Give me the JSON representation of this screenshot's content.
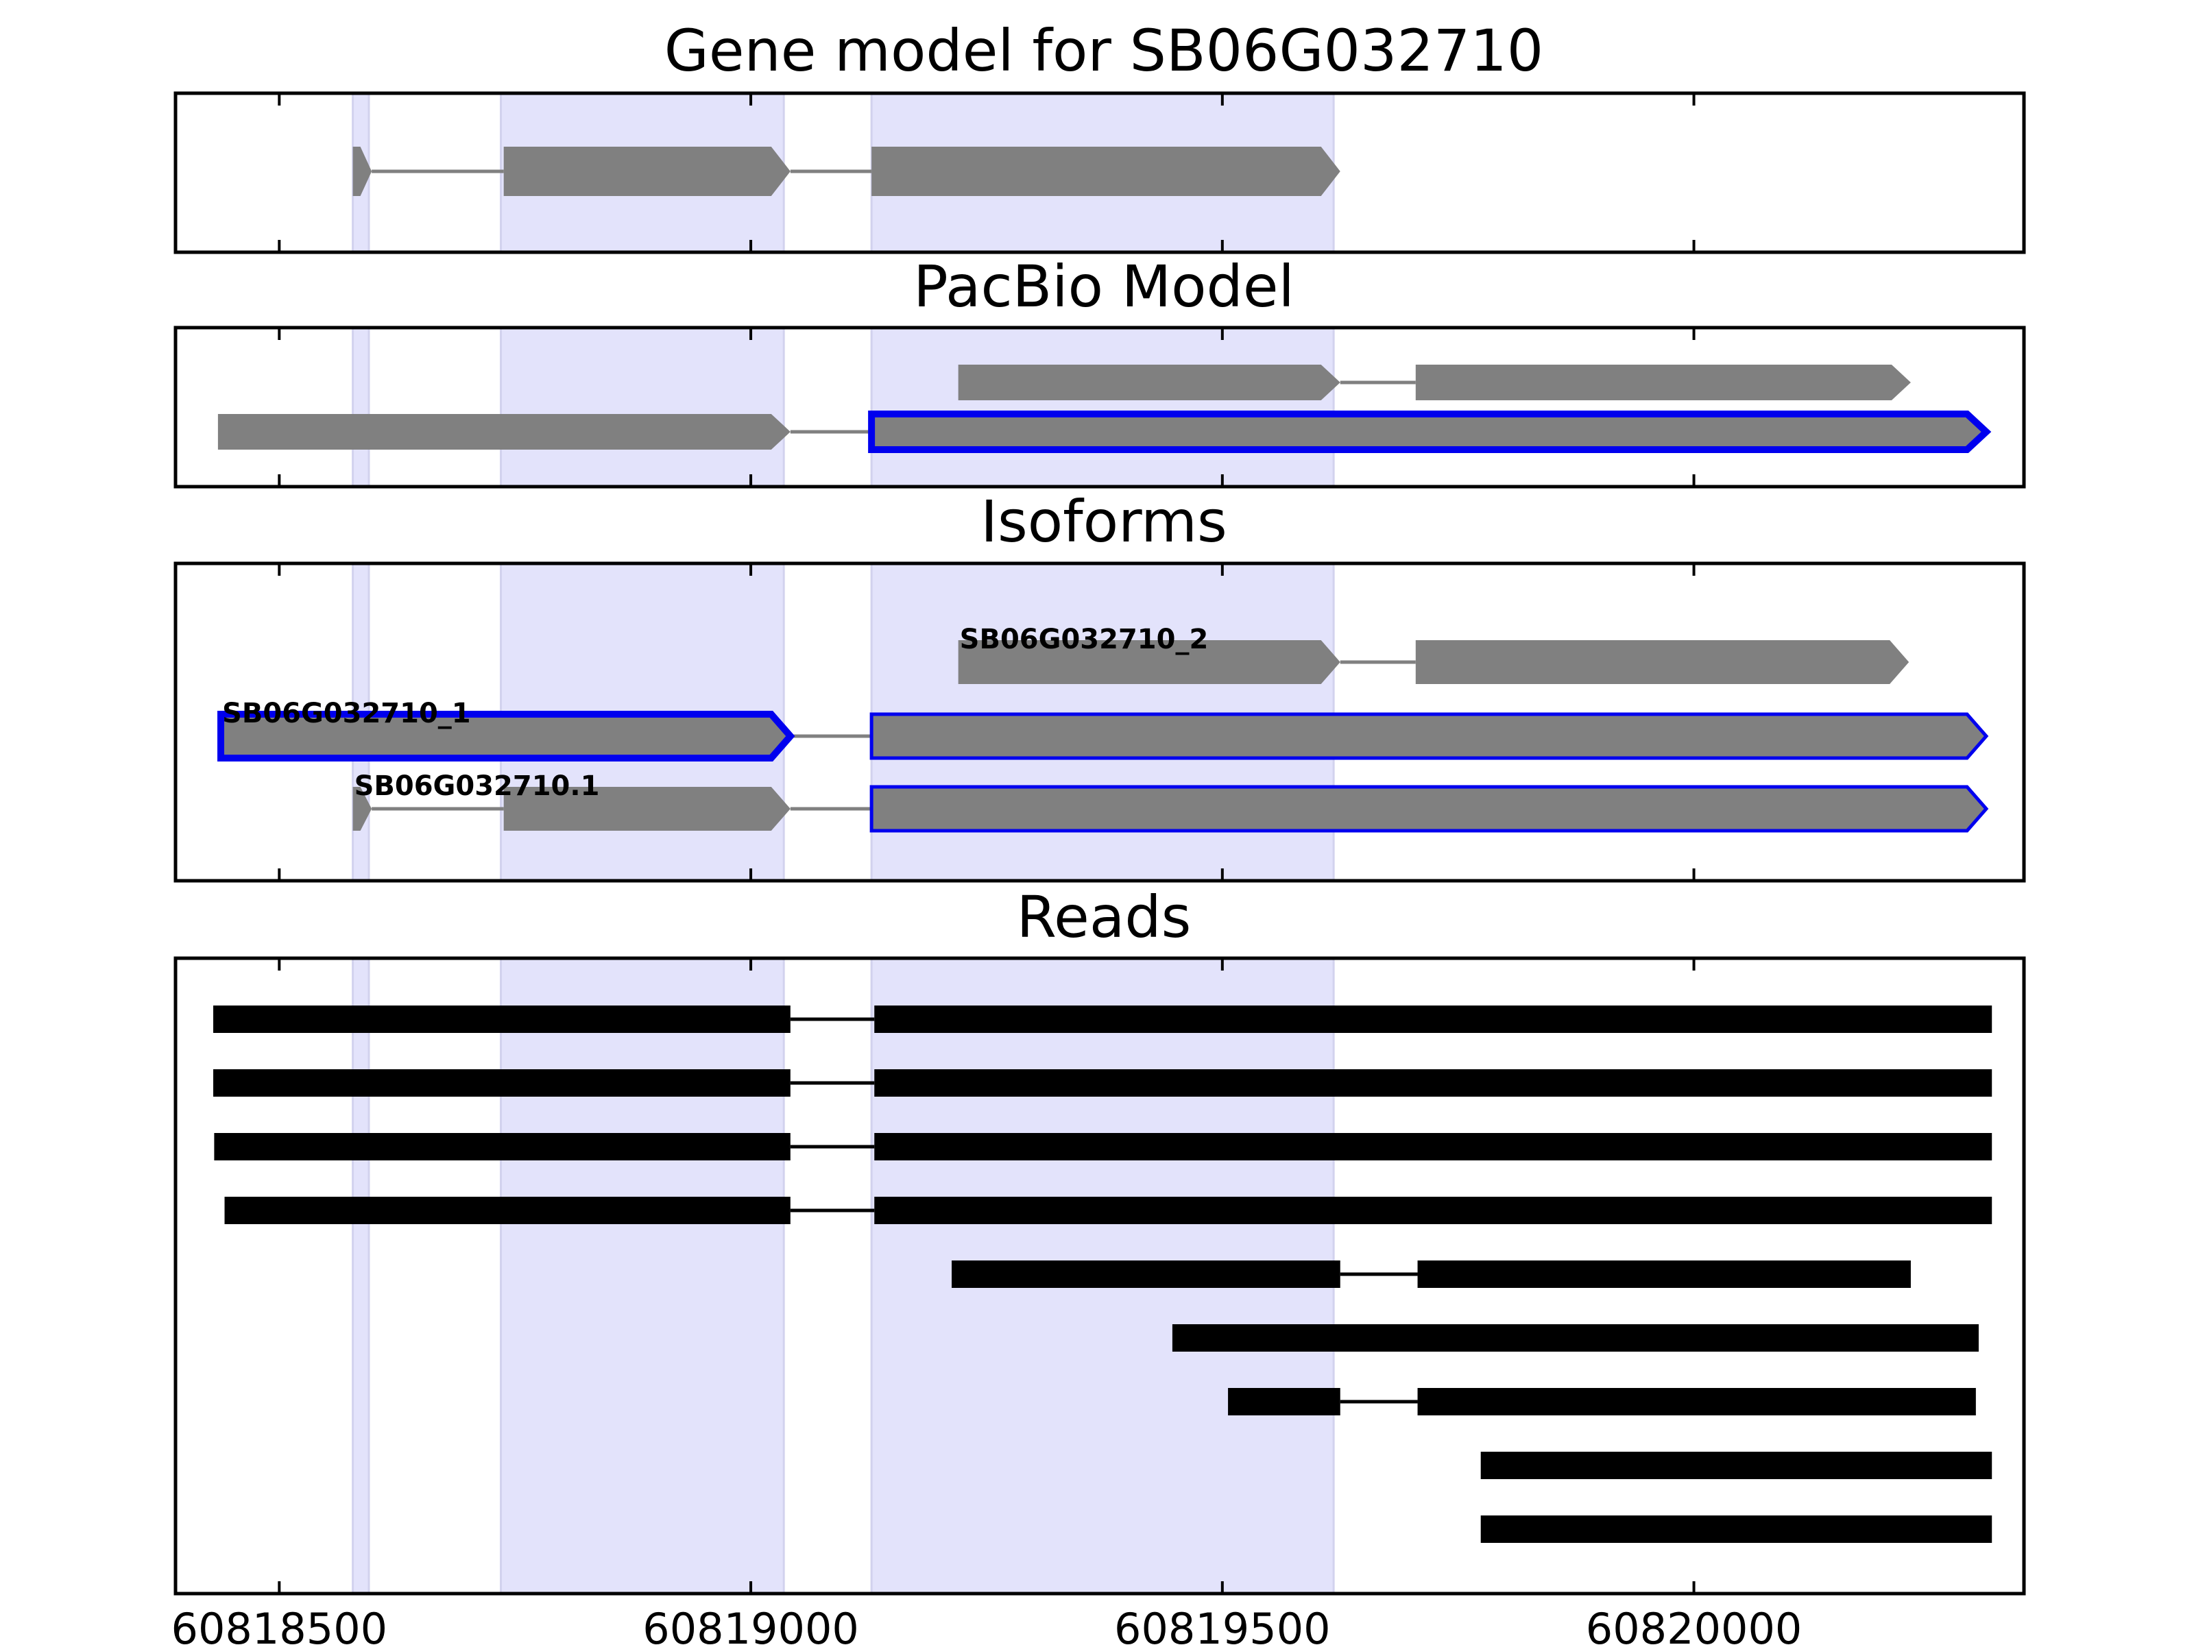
{
  "figure": {
    "panels": [
      {
        "id": "gene-model",
        "title": "Gene model for SB06G032710",
        "transcripts": [
          {
            "label": "",
            "highlight": "none",
            "exons": [
              [
                60818578,
                60818598
              ],
              [
                60818738,
                60819042
              ],
              [
                60819128,
                60819625
              ]
            ]
          }
        ]
      },
      {
        "id": "pacbio-model",
        "title": "PacBio Model",
        "transcripts": [
          {
            "label": "",
            "highlight": "none",
            "exons": [
              [
                60819220,
                60819625
              ],
              [
                60819705,
                60820230
              ]
            ]
          },
          {
            "label": "",
            "highlight": "thick",
            "exons": [
              [
                60818435,
                60819042
              ],
              [
                60819128,
                60820310
              ]
            ]
          }
        ]
      },
      {
        "id": "isoforms",
        "title": "Isoforms",
        "transcripts": [
          {
            "label": "SB06G032710_2",
            "highlight": "none",
            "exons": [
              [
                60819220,
                60819625
              ],
              [
                60819705,
                60820228
              ]
            ]
          },
          {
            "label": "SB06G032710_1",
            "highlight": "thick",
            "exons": [
              [
                60818438,
                60819042
              ],
              [
                60819128,
                60820310
              ]
            ]
          },
          {
            "label": "SB06G032710.1",
            "highlight": "thin",
            "exons": [
              [
                60818578,
                60818598
              ],
              [
                60818738,
                60819042
              ],
              [
                60819128,
                60820310
              ]
            ]
          }
        ]
      },
      {
        "id": "reads",
        "title": "Reads",
        "reads": [
          [
            [
              60818430,
              60819042
            ],
            [
              60819131,
              60820316
            ]
          ],
          [
            [
              60818430,
              60819042
            ],
            [
              60819131,
              60820316
            ]
          ],
          [
            [
              60818431,
              60819042
            ],
            [
              60819131,
              60820316
            ]
          ],
          [
            [
              60818442,
              60819042
            ],
            [
              60819131,
              60820316
            ]
          ],
          [
            [
              60819213,
              60819625
            ],
            [
              60819707,
              60820230
            ]
          ],
          [
            [
              60819447,
              60820302
            ]
          ],
          [
            [
              60819506,
              60819625
            ],
            [
              60819707,
              60820299
            ]
          ],
          [
            [
              60819774,
              60820316
            ]
          ],
          [
            [
              60819774,
              60820316
            ]
          ]
        ]
      }
    ],
    "highlight_regions": [
      [
        60818578,
        60818595
      ],
      [
        60818735,
        60819035
      ],
      [
        60819128,
        60819618
      ]
    ],
    "x_axis": {
      "range": [
        60818390,
        60820350
      ],
      "ticks": [
        60818500,
        60819000,
        60819500,
        60820000
      ],
      "tick_labels": [
        "60818500",
        "60819000",
        "60819500",
        "60820000"
      ]
    },
    "colors": {
      "exon_fill": "#808080",
      "intron": "#808080",
      "highlight_band": "#e3e3fb",
      "selected_outline": "#0000ee",
      "read": "#000000"
    }
  }
}
